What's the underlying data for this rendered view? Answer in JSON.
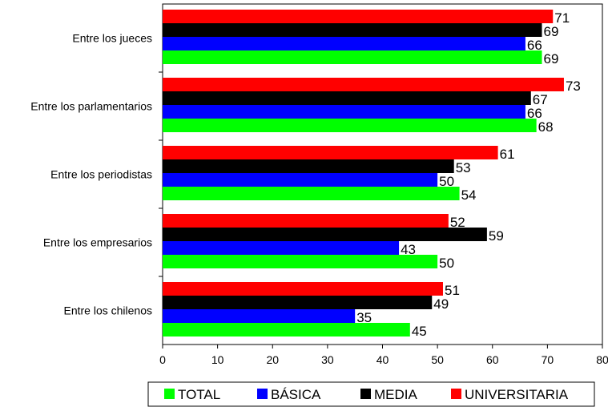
{
  "chart_data": {
    "type": "bar",
    "orientation": "horizontal",
    "title": "",
    "xlabel": "",
    "ylabel": "",
    "categories": [
      "Entre los jueces",
      "Entre los parlamentarios",
      "Entre los periodistas",
      "Entre los empresarios",
      "Entre los chilenos"
    ],
    "series": [
      {
        "name": "UNIVERSITARIA",
        "color": "#ff0000",
        "values": [
          71,
          73,
          61,
          52,
          51
        ]
      },
      {
        "name": "MEDIA",
        "color": "#000000",
        "values": [
          69,
          67,
          53,
          59,
          49
        ]
      },
      {
        "name": "BÁSICA",
        "color": "#0000ff",
        "values": [
          66,
          66,
          50,
          43,
          35
        ]
      },
      {
        "name": "TOTAL",
        "color": "#00ff00",
        "values": [
          69,
          68,
          54,
          50,
          45
        ]
      }
    ],
    "xlim": [
      0,
      80
    ],
    "x_ticks": [
      "0",
      "10",
      "20",
      "30",
      "40",
      "50",
      "60",
      "70",
      "80"
    ],
    "grid": false,
    "legend": {
      "position": "bottom",
      "order": [
        "TOTAL",
        "BÁSICA",
        "MEDIA",
        "UNIVERSITARIA"
      ]
    }
  }
}
